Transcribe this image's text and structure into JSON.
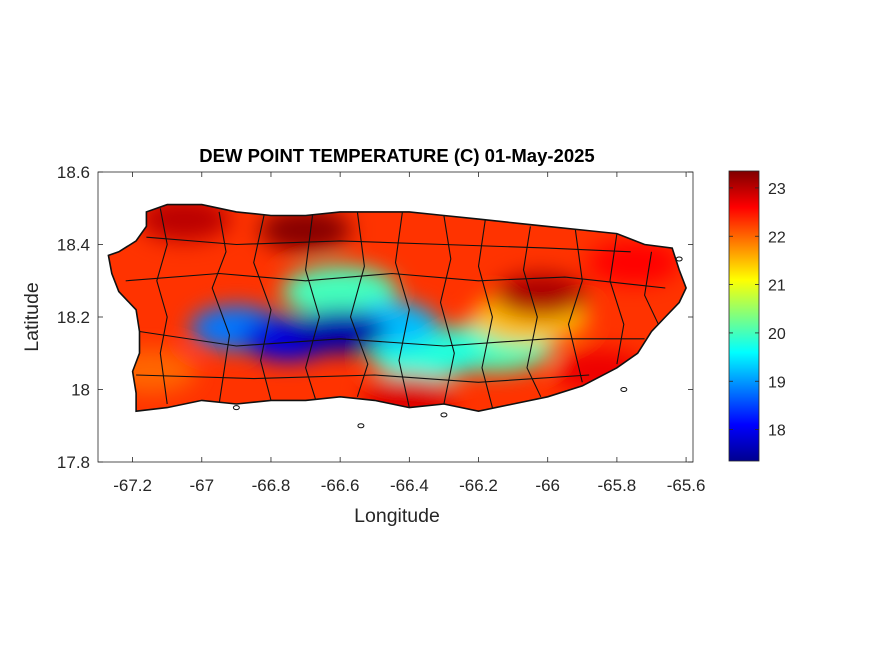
{
  "chart_data": {
    "type": "heatmap",
    "title": "DEW POINT TEMPERATURE (C) 01-May-2025",
    "xlabel": "Longitude",
    "ylabel": "Latitude",
    "xlim": [
      -67.3,
      -65.58
    ],
    "ylim": [
      17.8,
      18.6
    ],
    "x_ticks": [
      -67.2,
      -67,
      -66.8,
      -66.6,
      -66.4,
      -66.2,
      -66,
      -65.8,
      -65.6
    ],
    "x_tick_labels": [
      "-67.2",
      "-67",
      "-66.8",
      "-66.6",
      "-66.4",
      "-66.2",
      "-66",
      "-65.8",
      "-65.6"
    ],
    "y_ticks": [
      17.8,
      18,
      18.2,
      18.4,
      18.6
    ],
    "y_tick_labels": [
      "17.8",
      "18",
      "18.2",
      "18.4",
      "18.6"
    ],
    "colorbar": {
      "colormap": "jet",
      "range": [
        17.35,
        23.35
      ],
      "ticks": [
        18,
        19,
        20,
        21,
        22,
        23
      ],
      "tick_labels": [
        "18",
        "19",
        "20",
        "21",
        "22",
        "23"
      ]
    },
    "field_regions": [
      {
        "lon": -66.6,
        "lat": 18.16,
        "value": 17.6
      },
      {
        "lon": -66.75,
        "lat": 18.14,
        "value": 17.9
      },
      {
        "lon": -66.9,
        "lat": 18.17,
        "value": 18.8
      },
      {
        "lon": -66.45,
        "lat": 18.18,
        "value": 19.2
      },
      {
        "lon": -66.6,
        "lat": 18.27,
        "value": 20.0
      },
      {
        "lon": -66.35,
        "lat": 18.1,
        "value": 19.8
      },
      {
        "lon": -66.15,
        "lat": 18.12,
        "value": 20.0
      },
      {
        "lon": -66.05,
        "lat": 18.2,
        "value": 21.5
      },
      {
        "lon": -66.02,
        "lat": 18.26,
        "value": 23.1
      },
      {
        "lon": -66.7,
        "lat": 18.44,
        "value": 23.3
      },
      {
        "lon": -67.05,
        "lat": 18.47,
        "value": 23.0
      },
      {
        "lon": -65.75,
        "lat": 18.35,
        "value": 22.6
      },
      {
        "lon": -66.4,
        "lat": 17.98,
        "value": 22.8
      },
      {
        "lon": -67.15,
        "lat": 18.05,
        "value": 22.0
      },
      {
        "lon": -65.85,
        "lat": 18.05,
        "value": 22.7
      }
    ]
  }
}
